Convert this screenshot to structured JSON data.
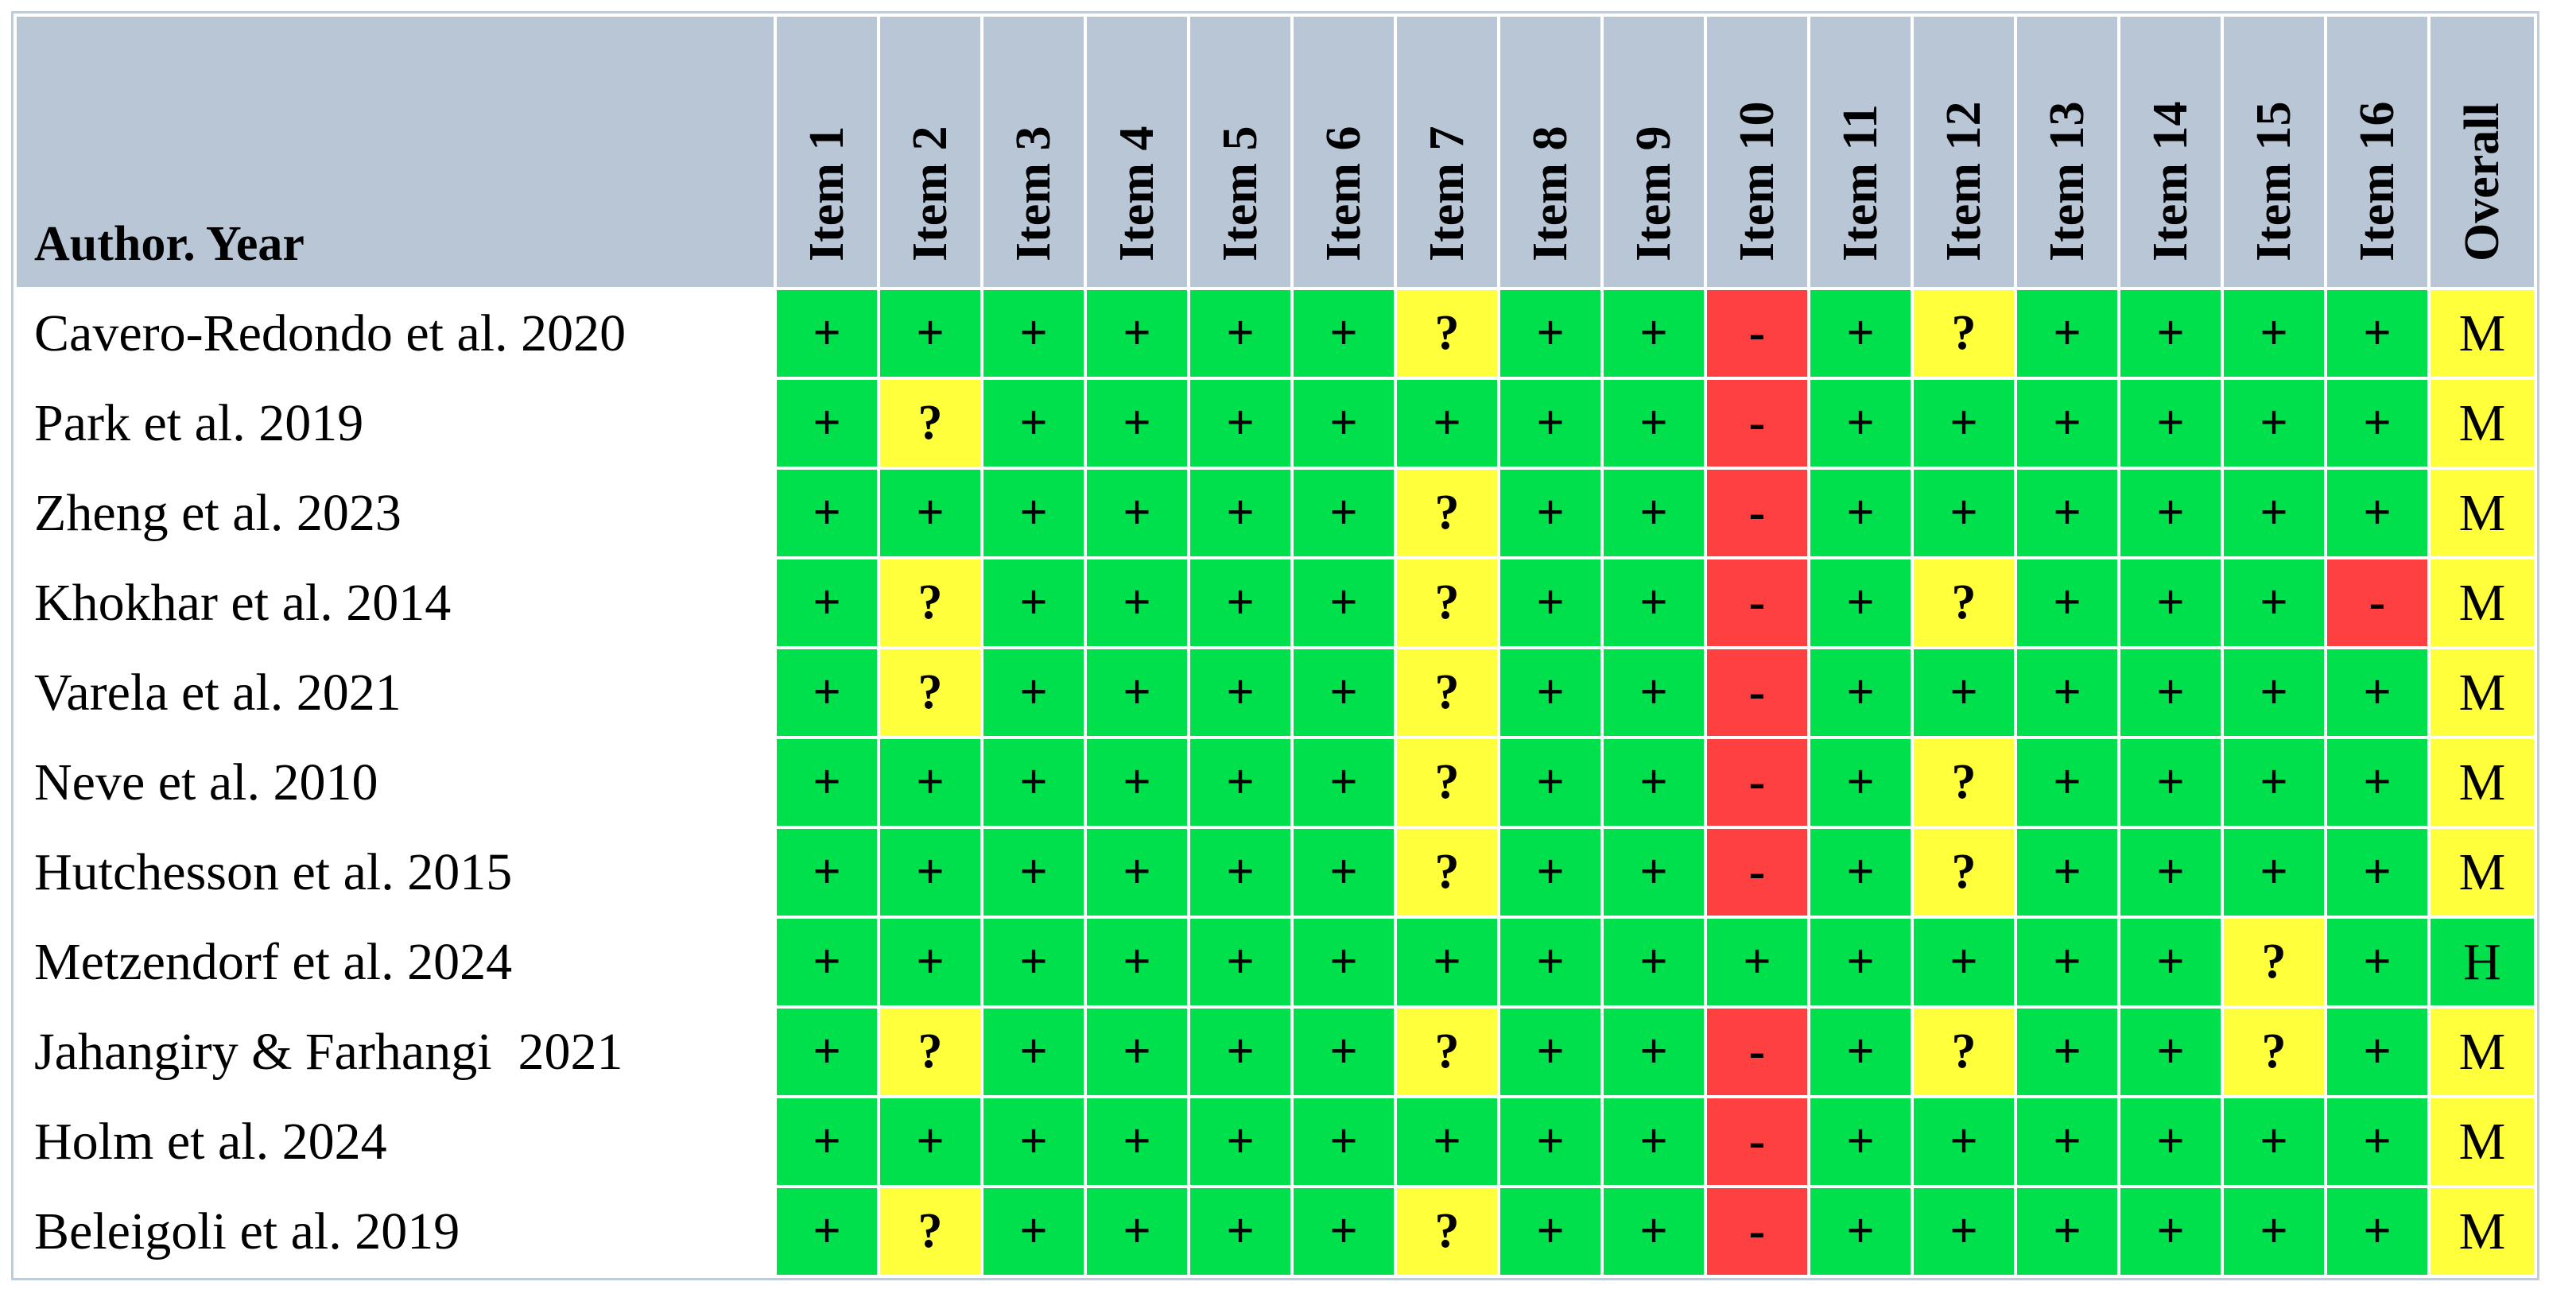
{
  "table": {
    "header": [
      "Author. Year",
      "Item 1",
      "Item 2",
      "Item 3",
      "Item 4",
      "Item 5",
      "Item 6",
      "Item 7",
      "Item 8",
      "Item 9",
      "Item 10",
      "Item 11",
      "Item 12",
      "Item 13",
      "Item 14",
      "Item 15",
      "Item 16",
      "Overall"
    ],
    "rows": [
      [
        "Cavero-Redondo et al. 2020",
        "+",
        "+",
        "+",
        "+",
        "+",
        "+",
        "?",
        "+",
        "+",
        "-",
        "+",
        "?",
        "+",
        "+",
        "+",
        "+",
        "M"
      ],
      [
        "Park et al. 2019",
        "+",
        "?",
        "+",
        "+",
        "+",
        "+",
        "+",
        "+",
        "+",
        "-",
        "+",
        "+",
        "+",
        "+",
        "+",
        "+",
        "M"
      ],
      [
        "Zheng et al. 2023",
        "+",
        "+",
        "+",
        "+",
        "+",
        "+",
        "?",
        "+",
        "+",
        "-",
        "+",
        "+",
        "+",
        "+",
        "+",
        "+",
        "M"
      ],
      [
        "Khokhar et al. 2014",
        "+",
        "?",
        "+",
        "+",
        "+",
        "+",
        "?",
        "+",
        "+",
        "-",
        "+",
        "?",
        "+",
        "+",
        "+",
        "-",
        "M"
      ],
      [
        "Varela et al. 2021",
        "+",
        "?",
        "+",
        "+",
        "+",
        "+",
        "?",
        "+",
        "+",
        "-",
        "+",
        "+",
        "+",
        "+",
        "+",
        "+",
        "M"
      ],
      [
        "Neve et al. 2010",
        "+",
        "+",
        "+",
        "+",
        "+",
        "+",
        "?",
        "+",
        "+",
        "-",
        "+",
        "?",
        "+",
        "+",
        "+",
        "+",
        "M"
      ],
      [
        "Hutchesson et al. 2015",
        "+",
        "+",
        "+",
        "+",
        "+",
        "+",
        "?",
        "+",
        "+",
        "-",
        "+",
        "?",
        "+",
        "+",
        "+",
        "+",
        "M"
      ],
      [
        "Metzendorf et al. 2024",
        "+",
        "+",
        "+",
        "+",
        "+",
        "+",
        "+",
        "+",
        "+",
        "+",
        "+",
        "+",
        "+",
        "+",
        "?",
        "+",
        "H"
      ],
      [
        "Jahangiry & Farhangi  2021",
        "+",
        "?",
        "+",
        "+",
        "+",
        "+",
        "?",
        "+",
        "+",
        "-",
        "+",
        "?",
        "+",
        "+",
        "?",
        "+",
        "M"
      ],
      [
        "Holm et al. 2024",
        "+",
        "+",
        "+",
        "+",
        "+",
        "+",
        "+",
        "+",
        "+",
        "-",
        "+",
        "+",
        "+",
        "+",
        "+",
        "+",
        "M"
      ],
      [
        "Beleigoli et al. 2019",
        "+",
        "?",
        "+",
        "+",
        "+",
        "+",
        "?",
        "+",
        "+",
        "-",
        "+",
        "+",
        "+",
        "+",
        "+",
        "+",
        "M"
      ]
    ]
  },
  "cell_colors": {
    "+": "#00e04c",
    "?": "#ffff3c",
    "-": "#ff4040",
    "M": "#ffff3c",
    "H": "#00e04c"
  }
}
